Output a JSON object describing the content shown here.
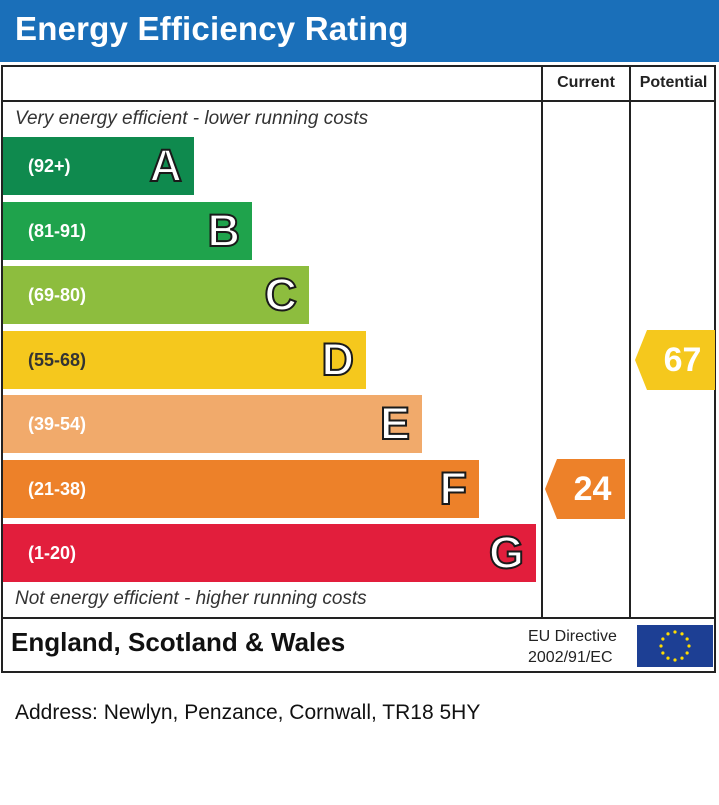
{
  "title": "Energy Efficiency Rating",
  "columns": {
    "current": "Current",
    "potential": "Potential"
  },
  "top_caption": "Very energy efficient - lower running costs",
  "bottom_caption": "Not energy efficient - higher running costs",
  "footer": {
    "region": "England, Scotland & Wales",
    "directive_line1": "EU Directive",
    "directive_line2": "2002/91/EC",
    "flag_icon": "eu-flag-icon"
  },
  "address": "Address: Newlyn, Penzance, Cornwall, TR18 5HY",
  "chart_data": {
    "type": "bar",
    "categories": [
      "A",
      "B",
      "C",
      "D",
      "E",
      "F",
      "G"
    ],
    "ranges": [
      "(92+)",
      "(81-91)",
      "(69-80)",
      "(55-68)",
      "(39-54)",
      "(21-38)",
      "(1-20)"
    ],
    "colors": [
      "#0f8a4e",
      "#1fa34c",
      "#8dbd3e",
      "#f5c81d",
      "#f1aa6b",
      "#ed8129",
      "#e21e3c"
    ],
    "current": {
      "value": 24,
      "band": "F",
      "color": "#ed8129"
    },
    "potential": {
      "value": 67,
      "band": "D",
      "color": "#f5c81d"
    }
  }
}
